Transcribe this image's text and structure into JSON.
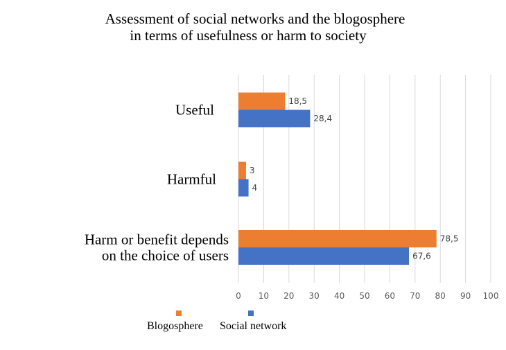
{
  "chart_data": {
    "type": "bar",
    "orientation": "horizontal",
    "title": [
      "Assessment of social networks and the blogosphere",
      "in terms of usefulness or harm to society"
    ],
    "categories": [
      [
        "Useful"
      ],
      [
        "Harmful"
      ],
      [
        "Harm or benefit depends",
        "on the choice of users"
      ]
    ],
    "series": [
      {
        "name": "Blogosphere",
        "color": "#ed7d31",
        "values": [
          18.5,
          3,
          78.5
        ],
        "labels": [
          "18,5",
          "3",
          "78,5"
        ]
      },
      {
        "name": "Social network",
        "color": "#4472c4",
        "values": [
          28.4,
          4,
          67.6
        ],
        "labels": [
          "28,4",
          "4",
          "67,6"
        ]
      }
    ],
    "xlim": [
      0,
      100
    ],
    "xticks": [
      0,
      10,
      20,
      30,
      40,
      50,
      60,
      70,
      80,
      90,
      100
    ],
    "grid": true,
    "legend_position": "bottom"
  }
}
